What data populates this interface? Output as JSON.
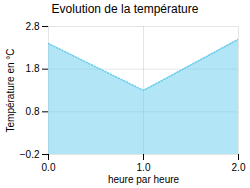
{
  "chart_data": {
    "type": "area",
    "title": "Evolution de la température",
    "xlabel": "heure par heure",
    "ylabel": "Température en °C",
    "x": [
      0,
      1,
      2
    ],
    "values": [
      2.4,
      1.3,
      2.5
    ],
    "xlim": [
      0,
      2
    ],
    "ylim": [
      -0.2,
      2.8
    ],
    "xticks": [
      0,
      1,
      2
    ],
    "yticks": [
      -0.2,
      0.8,
      1.8,
      2.8
    ],
    "color": "#66ccee",
    "line_style": "dotted",
    "grid": true
  }
}
